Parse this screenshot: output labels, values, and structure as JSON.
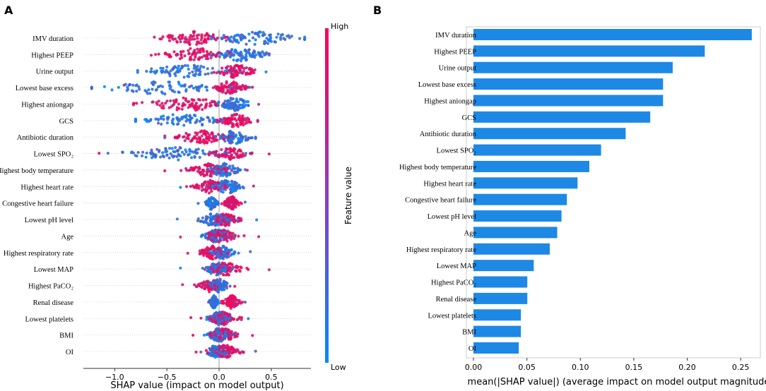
{
  "chart_data": [
    {
      "panel_label": "A",
      "type": "scatter",
      "subtype": "shap-beeswarm",
      "xlabel": "SHAP value (impact on model output)",
      "xlim": [
        -1.3,
        0.88
      ],
      "xticks": [
        -1.0,
        -0.5,
        0.0,
        0.5
      ],
      "xtick_labels": [
        "−1.0",
        "−0.5",
        "0.0",
        "0.5"
      ],
      "colorbar": {
        "title": "Feature value",
        "high_label": "High",
        "low_label": "Low",
        "high_color": "#ff0052",
        "low_color": "#008afb"
      },
      "features": [
        {
          "name": "IMV duration",
          "min": -0.62,
          "max": 0.82,
          "low_center": 0.35,
          "low_spread": 0.22,
          "high_center": -0.25,
          "high_spread": 0.16
        },
        {
          "name": "Highest PEEP",
          "min": -0.65,
          "max": 0.48,
          "low_center": 0.22,
          "low_spread": 0.14,
          "high_center": -0.22,
          "high_spread": 0.16
        },
        {
          "name": "Urine output",
          "min": -0.78,
          "max": 0.45,
          "low_center": -0.3,
          "low_spread": 0.22,
          "high_center": 0.16,
          "high_spread": 0.1
        },
        {
          "name": "Lowest base excess",
          "min": -1.22,
          "max": 0.32,
          "low_center": -0.55,
          "low_spread": 0.3,
          "high_center": 0.1,
          "high_spread": 0.08
        },
        {
          "name": "Highest aniongap",
          "min": -0.82,
          "max": 0.38,
          "low_center": 0.15,
          "low_spread": 0.09,
          "high_center": -0.3,
          "high_spread": 0.22
        },
        {
          "name": "GCS",
          "min": -0.8,
          "max": 0.37,
          "low_center": -0.35,
          "low_spread": 0.22,
          "high_center": 0.16,
          "high_spread": 0.08
        },
        {
          "name": "Antibiotic duration",
          "min": -0.52,
          "max": 0.35,
          "low_center": 0.15,
          "low_spread": 0.09,
          "high_center": -0.18,
          "high_spread": 0.13
        },
        {
          "name": "Lowest SPO₂",
          "min": -1.15,
          "max": 0.48,
          "low_center": -0.4,
          "low_spread": 0.26,
          "high_center": 0.1,
          "high_spread": 0.09
        },
        {
          "name": "Highest body temperature",
          "min": -0.52,
          "max": 0.27,
          "low_center": 0.05,
          "low_spread": 0.08,
          "high_center": -0.12,
          "high_spread": 0.1
        },
        {
          "name": "Highest heart rate",
          "min": -0.37,
          "max": 0.33,
          "low_center": 0.08,
          "low_spread": 0.08,
          "high_center": -0.08,
          "high_spread": 0.08
        },
        {
          "name": "Congestive heart failure",
          "min": -0.2,
          "max": 0.25,
          "low_center": -0.07,
          "low_spread": 0.03,
          "high_center": 0.12,
          "high_spread": 0.04
        },
        {
          "name": "Lowest pH level",
          "min": -0.4,
          "max": 0.36,
          "low_center": -0.05,
          "low_spread": 0.08,
          "high_center": 0.06,
          "high_spread": 0.07
        },
        {
          "name": "Age",
          "min": -0.37,
          "max": 0.38,
          "low_center": -0.02,
          "low_spread": 0.07,
          "high_center": 0.02,
          "high_spread": 0.09
        },
        {
          "name": "Highest respiratory rate",
          "min": -0.3,
          "max": 0.3,
          "low_center": 0.04,
          "low_spread": 0.06,
          "high_center": -0.06,
          "high_spread": 0.07
        },
        {
          "name": "Lowest MAP",
          "min": -0.37,
          "max": 0.48,
          "low_center": -0.02,
          "low_spread": 0.06,
          "high_center": 0.06,
          "high_spread": 0.09
        },
        {
          "name": "Highest PaCO₂",
          "min": -0.35,
          "max": 0.15,
          "low_center": 0.0,
          "low_spread": 0.05,
          "high_center": -0.08,
          "high_spread": 0.06
        },
        {
          "name": "Renal disease",
          "min": -0.1,
          "max": 0.25,
          "low_center": -0.05,
          "low_spread": 0.02,
          "high_center": 0.12,
          "high_spread": 0.04
        },
        {
          "name": "Lowest platelets",
          "min": -0.27,
          "max": 0.28,
          "low_center": 0.0,
          "low_spread": 0.06,
          "high_center": 0.03,
          "high_spread": 0.07
        },
        {
          "name": "BMI",
          "min": -0.25,
          "max": 0.32,
          "low_center": 0.0,
          "low_spread": 0.06,
          "high_center": 0.04,
          "high_spread": 0.07
        },
        {
          "name": "OI",
          "min": -0.22,
          "max": 0.35,
          "low_center": -0.02,
          "low_spread": 0.06,
          "high_center": 0.05,
          "high_spread": 0.08
        }
      ]
    },
    {
      "panel_label": "B",
      "type": "bar",
      "orientation": "horizontal",
      "xlabel": "mean(|SHAP value|) (average impact on model output magnitude)",
      "xlim": [
        0,
        0.275
      ],
      "xticks": [
        0.0,
        0.05,
        0.1,
        0.15,
        0.2,
        0.25
      ],
      "xtick_labels": [
        "0.00",
        "0.05",
        "0.10",
        "0.15",
        "0.20",
        "0.25"
      ],
      "bar_color": "#1e88e5",
      "categories": [
        "IMV duration",
        "Highest PEEP",
        "Urine output",
        "Lowest base excess",
        "Highest aniongap",
        "GCS",
        "Antibiotic duration",
        "Lowest SPO₂",
        "Highest body temperature",
        "Highest heart rate",
        "Congestive heart failure",
        "Lowest pH level",
        "Age",
        "Highest respiratory rate",
        "Lowest MAP",
        "Highest PaCO₂",
        "Renal disease",
        "Lowest platelets",
        "BMI",
        "OI"
      ],
      "values": [
        0.267,
        0.223,
        0.193,
        0.184,
        0.184,
        0.172,
        0.149,
        0.126,
        0.115,
        0.104,
        0.094,
        0.089,
        0.085,
        0.078,
        0.063,
        0.057,
        0.057,
        0.051,
        0.051,
        0.049
      ]
    }
  ]
}
